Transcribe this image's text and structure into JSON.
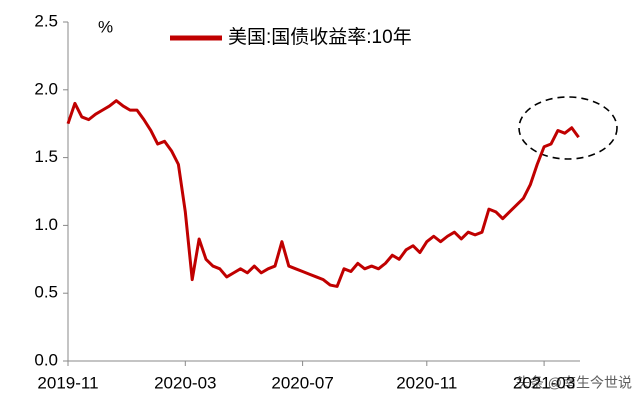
{
  "chart_data": {
    "type": "line",
    "y_unit": "%",
    "watermark": "头条 @南生今世说",
    "categories": [
      "2019-11",
      null,
      null,
      null,
      null,
      null,
      null,
      null,
      null,
      null,
      null,
      null,
      null,
      null,
      null,
      null,
      null,
      "2020-03",
      null,
      null,
      null,
      null,
      null,
      null,
      null,
      null,
      null,
      null,
      null,
      null,
      null,
      null,
      null,
      null,
      "2020-07",
      null,
      null,
      null,
      null,
      null,
      null,
      null,
      null,
      null,
      null,
      null,
      null,
      null,
      null,
      null,
      null,
      null,
      "2020-11",
      null,
      null,
      null,
      null,
      null,
      null,
      null,
      null,
      null,
      null,
      null,
      null,
      null,
      null,
      null,
      null,
      "2021-03",
      null,
      null,
      null,
      null,
      null
    ],
    "series": [
      {
        "name": "美国:国债收益率:10年",
        "color": "#c00000",
        "values": [
          1.75,
          1.9,
          1.8,
          1.78,
          1.82,
          1.85,
          1.88,
          1.92,
          1.88,
          1.85,
          1.85,
          1.78,
          1.7,
          1.6,
          1.62,
          1.55,
          1.45,
          1.1,
          0.6,
          0.9,
          0.75,
          0.7,
          0.68,
          0.62,
          0.65,
          0.68,
          0.65,
          0.7,
          0.65,
          0.68,
          0.7,
          0.88,
          0.7,
          0.68,
          0.66,
          0.64,
          0.62,
          0.6,
          0.56,
          0.55,
          0.68,
          0.66,
          0.72,
          0.68,
          0.7,
          0.68,
          0.72,
          0.78,
          0.75,
          0.82,
          0.85,
          0.8,
          0.88,
          0.92,
          0.88,
          0.92,
          0.95,
          0.9,
          0.95,
          0.93,
          0.95,
          1.12,
          1.1,
          1.05,
          1.1,
          1.15,
          1.2,
          1.3,
          1.45,
          1.58,
          1.6,
          1.7,
          1.68,
          1.72,
          1.65
        ]
      }
    ],
    "ylim": [
      0,
      2.5
    ],
    "yticks": [
      {
        "value": 0,
        "label": "0.0"
      },
      0.5,
      {
        "value": 1,
        "label": "1.0"
      },
      1.5,
      {
        "value": 2,
        "label": "2.0"
      },
      2.5
    ],
    "grid": false
  }
}
